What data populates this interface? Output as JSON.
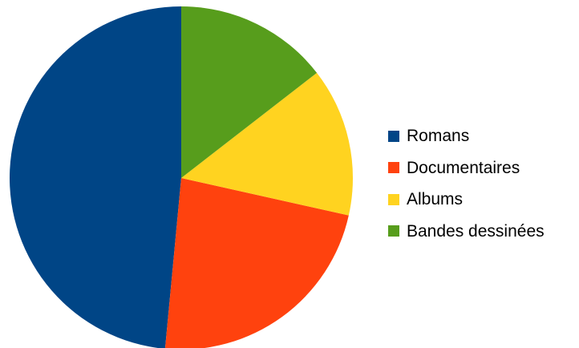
{
  "chart_data": {
    "type": "pie",
    "title": "",
    "categories": [
      "Romans",
      "Documentaires",
      "Albums",
      "Bandes dessinées"
    ],
    "values": [
      48.5,
      23,
      14,
      14.5
    ],
    "unit": "",
    "colors": [
      "#004586",
      "#ff420e",
      "#ffd320",
      "#579d1c"
    ],
    "start_angle_deg": 0,
    "direction": "counterclockwise",
    "legend_position": "right"
  }
}
